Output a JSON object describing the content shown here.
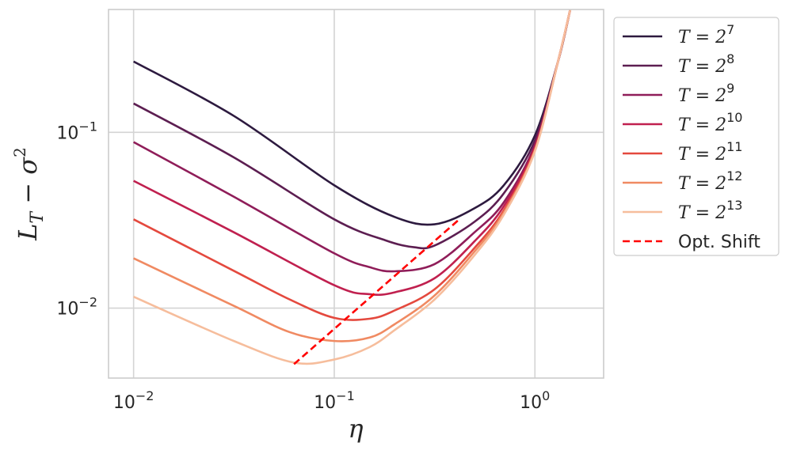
{
  "chart_data": {
    "type": "line",
    "xscale": "log",
    "yscale": "log",
    "xlim": [
      0.0075,
      2.2
    ],
    "ylim": [
      0.004,
      0.5
    ],
    "grid": true,
    "legend_position": "outside-right",
    "xlabel": "η",
    "ylabel": {
      "main": "L",
      "sub": "T",
      "minus": " − ",
      "sigma": "σ",
      "sup": "2"
    },
    "xticks": [
      {
        "value": 0.01,
        "base": "10",
        "exp": "−2"
      },
      {
        "value": 0.1,
        "base": "10",
        "exp": "−1"
      },
      {
        "value": 1,
        "base": "10",
        "exp": "0"
      }
    ],
    "yticks": [
      {
        "value": 0.01,
        "base": "10",
        "exp": "−2"
      },
      {
        "value": 0.1,
        "base": "10",
        "exp": "−1"
      }
    ],
    "series": [
      {
        "name": "T = 2^7",
        "label_main": "T = 2",
        "label_exp": "7",
        "color": "#2d1a3f",
        "dash": false,
        "x": [
          0.01,
          0.0316,
          0.1,
          0.2,
          0.3162,
          0.5,
          0.7,
          1.0,
          1.3,
          1.5
        ],
        "y": [
          0.253,
          0.124,
          0.05,
          0.033,
          0.03,
          0.037,
          0.05,
          0.096,
          0.25,
          0.5
        ]
      },
      {
        "name": "T = 2^8",
        "label_main": "T = 2",
        "label_exp": "8",
        "color": "#5c1e51",
        "dash": false,
        "x": [
          0.01,
          0.0316,
          0.1,
          0.18,
          0.25,
          0.3162,
          0.5,
          0.7,
          1.0,
          1.3,
          1.5
        ],
        "y": [
          0.146,
          0.072,
          0.032,
          0.0243,
          0.0222,
          0.0227,
          0.031,
          0.045,
          0.09,
          0.25,
          0.5
        ]
      },
      {
        "name": "T = 2^9",
        "label_main": "T = 2",
        "label_exp": "9",
        "color": "#8f1d59",
        "dash": false,
        "x": [
          0.01,
          0.0316,
          0.1,
          0.15,
          0.2,
          0.3162,
          0.5,
          0.7,
          1.0,
          1.3,
          1.5
        ],
        "y": [
          0.088,
          0.043,
          0.0205,
          0.0171,
          0.0162,
          0.0178,
          0.027,
          0.04,
          0.085,
          0.25,
          0.5
        ]
      },
      {
        "name": "T = 2^10",
        "label_main": "T = 2",
        "label_exp": "10",
        "color": "#c0204f",
        "dash": false,
        "x": [
          0.01,
          0.0316,
          0.1,
          0.15,
          0.2,
          0.3162,
          0.5,
          0.7,
          1.0,
          1.3,
          1.5
        ],
        "y": [
          0.053,
          0.027,
          0.0135,
          0.012,
          0.0123,
          0.0148,
          0.024,
          0.038,
          0.082,
          0.25,
          0.5
        ]
      },
      {
        "name": "T = 2^11",
        "label_main": "T = 2",
        "label_exp": "11",
        "color": "#e4493e",
        "dash": false,
        "x": [
          0.01,
          0.0316,
          0.06,
          0.1,
          0.15,
          0.2,
          0.3162,
          0.5,
          0.7,
          1.0,
          1.3,
          1.5
        ],
        "y": [
          0.032,
          0.0163,
          0.0112,
          0.0088,
          0.0087,
          0.0097,
          0.0128,
          0.022,
          0.036,
          0.08,
          0.25,
          0.5
        ]
      },
      {
        "name": "T = 2^12",
        "label_main": "T = 2",
        "label_exp": "12",
        "color": "#f08a62",
        "dash": false,
        "x": [
          0.01,
          0.0316,
          0.06,
          0.1,
          0.15,
          0.2,
          0.3162,
          0.5,
          0.7,
          1.0,
          1.3,
          1.5
        ],
        "y": [
          0.0192,
          0.0103,
          0.0073,
          0.0065,
          0.0068,
          0.0081,
          0.0118,
          0.021,
          0.035,
          0.079,
          0.25,
          0.5
        ]
      },
      {
        "name": "T = 2^13",
        "label_main": "T = 2",
        "label_exp": "13",
        "color": "#f6bd9c",
        "dash": false,
        "x": [
          0.01,
          0.0316,
          0.0631,
          0.1,
          0.15,
          0.2,
          0.3162,
          0.5,
          0.7,
          1.0,
          1.3,
          1.5
        ],
        "y": [
          0.0116,
          0.0065,
          0.0049,
          0.0051,
          0.006,
          0.0075,
          0.0112,
          0.02,
          0.034,
          0.078,
          0.25,
          0.5
        ]
      },
      {
        "name": "Opt. Shift",
        "label_main": "Opt. Shift",
        "label_exp": "",
        "color": "#ff0000",
        "dash": true,
        "x": [
          0.063,
          0.42
        ],
        "y": [
          0.0048,
          0.032
        ]
      }
    ]
  }
}
